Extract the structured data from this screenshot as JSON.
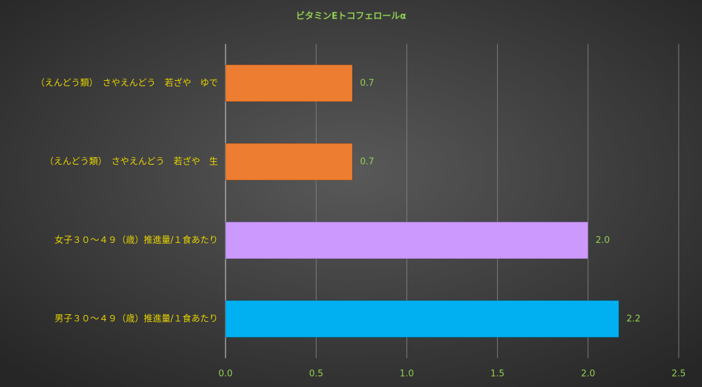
{
  "chart_data": {
    "type": "barh",
    "title": "ビタミンEトコフェロールα",
    "categories": [
      "（えんどう類）　さやえんどう　若ざや　ゆで",
      "（えんどう類）　さやえんどう　若ざや　生",
      "女子３０～４９（歳）推進量/１食あたり",
      "男子３０～４９（歳）推進量/１食あたり"
    ],
    "values": [
      0.7,
      0.7,
      2.0,
      2.17
    ],
    "value_labels": [
      "0.7",
      "0.7",
      "2.0",
      "2.2"
    ],
    "colors": [
      "#ed7d31",
      "#ed7d31",
      "#cc99ff",
      "#00b0f0"
    ],
    "xlim": [
      0,
      2.5
    ],
    "xticks": [
      {
        "value": 0,
        "label": "0.0"
      },
      0.5,
      {
        "value": 1,
        "label": "1.0"
      },
      1.5,
      {
        "value": 2,
        "label": "2.0"
      },
      2.5
    ],
    "grid": true
  }
}
